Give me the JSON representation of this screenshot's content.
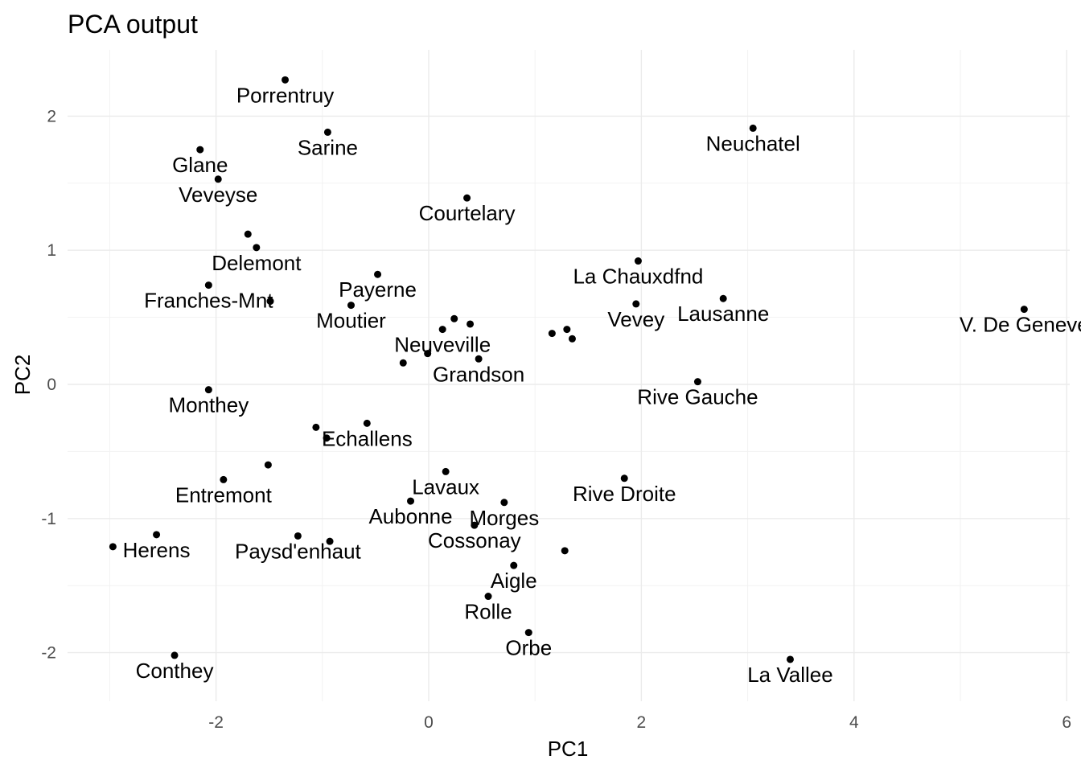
{
  "chart_data": {
    "type": "scatter",
    "title": "PCA output",
    "xlabel": "PC1",
    "ylabel": "PC2",
    "xlim": [
      -3.0,
      6.0
    ],
    "ylim": [
      -2.35,
      2.5
    ],
    "grid": true,
    "x_ticks": [
      {
        "value": -2,
        "label": "-2"
      },
      {
        "value": 0,
        "label": "0"
      },
      {
        "value": 2,
        "label": "2"
      },
      {
        "value": 4,
        "label": "4"
      },
      {
        "value": 6,
        "label": "6"
      }
    ],
    "y_ticks": [
      {
        "value": -2,
        "label": "-2"
      },
      {
        "value": -1,
        "label": "-1"
      },
      {
        "value": 0,
        "label": "0"
      },
      {
        "value": 1,
        "label": "1"
      },
      {
        "value": 2,
        "label": "2"
      }
    ],
    "points": [
      {
        "label": "Porrentruy",
        "x": -1.35,
        "y": 2.27
      },
      {
        "label": "Sarine",
        "x": -0.95,
        "y": 1.88
      },
      {
        "label": "Neuchatel",
        "x": 3.05,
        "y": 1.91
      },
      {
        "label": "Glane",
        "x": -2.15,
        "y": 1.75
      },
      {
        "label": "Veveyse",
        "x": -1.98,
        "y": 1.53
      },
      {
        "label": "Courtelary",
        "x": 0.36,
        "y": 1.39
      },
      {
        "label": "",
        "x": -1.7,
        "y": 1.12
      },
      {
        "label": "Delemont",
        "x": -1.62,
        "y": 1.02
      },
      {
        "label": "La Chauxdfnd",
        "x": 1.97,
        "y": 0.92
      },
      {
        "label": "Payerne",
        "x": -0.48,
        "y": 0.82
      },
      {
        "label": "Franches-Mnt",
        "x": -2.07,
        "y": 0.74
      },
      {
        "label": "Lausanne",
        "x": 2.77,
        "y": 0.64
      },
      {
        "label": "",
        "x": -1.49,
        "y": 0.62
      },
      {
        "label": "Vevey",
        "x": 1.95,
        "y": 0.6
      },
      {
        "label": "Moutier",
        "x": -0.73,
        "y": 0.59
      },
      {
        "label": "V. De Geneve",
        "x": 5.6,
        "y": 0.56
      },
      {
        "label": "",
        "x": 0.24,
        "y": 0.49
      },
      {
        "label": "",
        "x": 0.39,
        "y": 0.45
      },
      {
        "label": "Neuveville",
        "x": 0.13,
        "y": 0.41
      },
      {
        "label": "",
        "x": 1.3,
        "y": 0.41
      },
      {
        "label": "",
        "x": 1.16,
        "y": 0.38
      },
      {
        "label": "",
        "x": 1.35,
        "y": 0.34
      },
      {
        "label": "",
        "x": -0.01,
        "y": 0.23
      },
      {
        "label": "Grandson",
        "x": 0.47,
        "y": 0.19
      },
      {
        "label": "",
        "x": -0.24,
        "y": 0.16
      },
      {
        "label": "Rive Gauche",
        "x": 2.53,
        "y": 0.02
      },
      {
        "label": "Monthey",
        "x": -2.07,
        "y": -0.04
      },
      {
        "label": "Echallens",
        "x": -0.58,
        "y": -0.29
      },
      {
        "label": "",
        "x": -1.06,
        "y": -0.32
      },
      {
        "label": "",
        "x": -0.96,
        "y": -0.4
      },
      {
        "label": "",
        "x": -1.51,
        "y": -0.6
      },
      {
        "label": "Lavaux",
        "x": 0.16,
        "y": -0.65
      },
      {
        "label": "Rive Droite",
        "x": 1.84,
        "y": -0.7
      },
      {
        "label": "Entremont",
        "x": -1.93,
        "y": -0.71
      },
      {
        "label": "Aubonne",
        "x": -0.17,
        "y": -0.87
      },
      {
        "label": "Morges",
        "x": 0.71,
        "y": -0.88
      },
      {
        "label": "Cossonay",
        "x": 0.43,
        "y": -1.05
      },
      {
        "label": "Herens",
        "x": -2.56,
        "y": -1.12
      },
      {
        "label": "Paysd'enhaut",
        "x": -1.23,
        "y": -1.13
      },
      {
        "label": "",
        "x": -0.93,
        "y": -1.17
      },
      {
        "label": "",
        "x": -2.97,
        "y": -1.21
      },
      {
        "label": "",
        "x": 1.28,
        "y": -1.24
      },
      {
        "label": "Aigle",
        "x": 0.8,
        "y": -1.35
      },
      {
        "label": "Rolle",
        "x": 0.56,
        "y": -1.58
      },
      {
        "label": "Orbe",
        "x": 0.94,
        "y": -1.85
      },
      {
        "label": "Conthey",
        "x": -2.39,
        "y": -2.02
      },
      {
        "label": "La Vallee",
        "x": 3.4,
        "y": -2.05
      }
    ]
  }
}
